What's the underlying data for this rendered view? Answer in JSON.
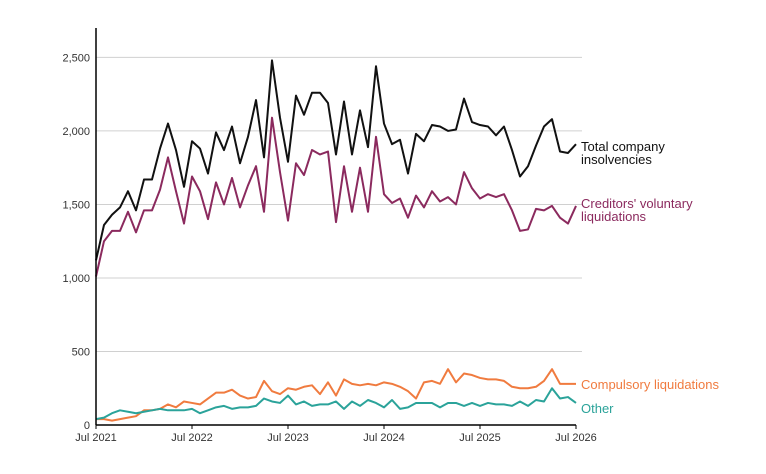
{
  "chart_data": {
    "type": "line",
    "title": "",
    "xlabel": "",
    "ylabel": "",
    "x_start": "2021-07",
    "x_end": "2026-07",
    "ylim": [
      0,
      2700
    ],
    "y_ticks": [
      0,
      500,
      1000,
      1500,
      2000,
      2500
    ],
    "y_tick_labels": [
      "0",
      "500",
      "1,000",
      "1,500",
      "2,000",
      "2,500"
    ],
    "x_ticks": [
      "2021-07",
      "2022-07",
      "2023-07",
      "2024-07",
      "2025-07",
      "2026-07"
    ],
    "x_tick_labels": [
      "Jul 2021",
      "Jul 2022",
      "Jul 2023",
      "Jul 2024",
      "Jul 2025",
      "Jul 2026"
    ],
    "grid": "horizontal",
    "series": [
      {
        "name": "Total company insolvencies",
        "label_lines": [
          "Total company",
          "insolvencies"
        ],
        "color": "#111111",
        "start": "2021-07",
        "values": [
          1120,
          1360,
          1430,
          1480,
          1590,
          1460,
          1670,
          1670,
          1880,
          2050,
          1870,
          1620,
          1930,
          1880,
          1710,
          1990,
          1870,
          2030,
          1780,
          1960,
          2210,
          1820,
          2480,
          2090,
          1790,
          2240,
          2110,
          2260,
          2260,
          2190,
          1840,
          2200,
          1840,
          2140,
          1890,
          2440,
          2050,
          1910,
          1940,
          1710,
          1980,
          1930,
          2040,
          2030,
          2000,
          2010,
          2220,
          2060,
          2040,
          2030,
          1970,
          2030,
          1870,
          1690,
          1760,
          1900,
          2030,
          2080,
          1860,
          1850,
          1910
        ]
      },
      {
        "name": "Creditors' voluntary liquidations",
        "label_lines": [
          "Creditors' voluntary",
          "liquidations"
        ],
        "color": "#8b2a5e",
        "start": "2021-07",
        "values": [
          1010,
          1250,
          1320,
          1320,
          1450,
          1310,
          1460,
          1460,
          1600,
          1820,
          1590,
          1370,
          1690,
          1590,
          1400,
          1650,
          1500,
          1680,
          1480,
          1630,
          1760,
          1450,
          2090,
          1720,
          1390,
          1780,
          1700,
          1870,
          1840,
          1860,
          1380,
          1760,
          1450,
          1750,
          1450,
          1960,
          1570,
          1510,
          1540,
          1410,
          1560,
          1480,
          1590,
          1520,
          1550,
          1500,
          1720,
          1610,
          1540,
          1570,
          1550,
          1570,
          1460,
          1320,
          1330,
          1470,
          1460,
          1490,
          1410,
          1370,
          1490
        ]
      },
      {
        "name": "Compulsory liquidations",
        "label_lines": [
          "Compulsory liquidations"
        ],
        "color": "#f07b3f",
        "start": "2021-07",
        "values": [
          40,
          40,
          30,
          40,
          50,
          60,
          100,
          100,
          110,
          140,
          120,
          160,
          150,
          140,
          180,
          220,
          220,
          240,
          200,
          180,
          190,
          300,
          230,
          210,
          250,
          240,
          260,
          270,
          210,
          290,
          200,
          310,
          280,
          270,
          280,
          270,
          290,
          280,
          260,
          230,
          180,
          290,
          300,
          280,
          380,
          290,
          350,
          340,
          320,
          310,
          310,
          300,
          260,
          250,
          250,
          260,
          300,
          380,
          280,
          280,
          280
        ]
      },
      {
        "name": "Other",
        "label_lines": [
          "Other"
        ],
        "color": "#2ba39a",
        "start": "2021-07",
        "values": [
          40,
          50,
          80,
          100,
          90,
          80,
          90,
          100,
          110,
          100,
          100,
          100,
          110,
          80,
          100,
          120,
          130,
          110,
          120,
          120,
          130,
          180,
          160,
          150,
          200,
          140,
          160,
          130,
          140,
          140,
          160,
          110,
          160,
          130,
          170,
          150,
          120,
          170,
          110,
          120,
          150,
          150,
          150,
          120,
          150,
          150,
          130,
          150,
          130,
          150,
          140,
          140,
          130,
          160,
          130,
          170,
          160,
          250,
          180,
          190,
          150
        ]
      }
    ]
  }
}
